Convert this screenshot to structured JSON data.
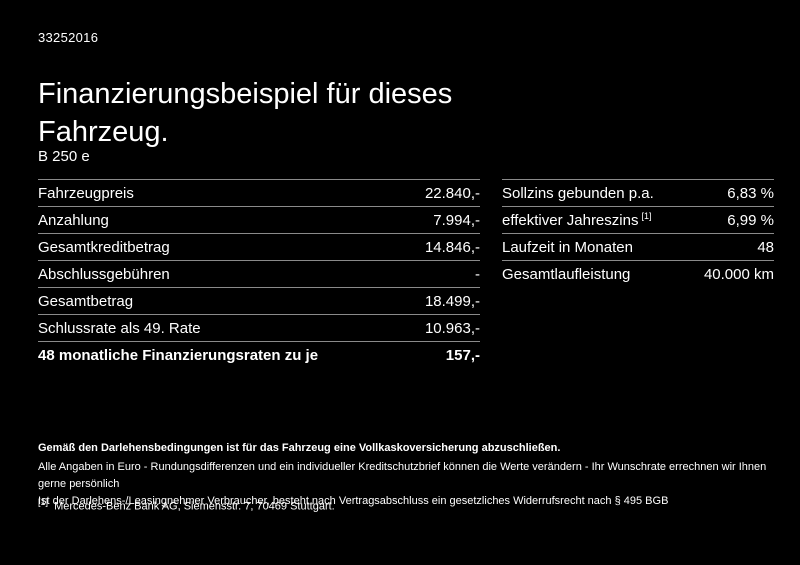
{
  "page": {
    "vehicle_id": "33252016",
    "title_line1": "Finanzierungsbeispiel für dieses",
    "title_line2": "Fahrzeug.",
    "model": "B 250 e"
  },
  "left_table": {
    "rows": [
      {
        "label": "Fahrzeugpreis",
        "value": "22.840,-"
      },
      {
        "label": "Anzahlung",
        "value": "7.994,-"
      },
      {
        "label": "Gesamtkreditbetrag",
        "value": "14.846,-"
      },
      {
        "label": "Abschlussgebühren",
        "value": "-"
      },
      {
        "label": "Gesamtbetrag",
        "value": "18.499,-"
      },
      {
        "label": "Schlussrate als 49. Rate",
        "value": "10.963,-"
      },
      {
        "label": "48 monatliche Finanzierungsraten zu je",
        "value": "157,-"
      }
    ]
  },
  "right_table": {
    "rows": [
      {
        "label": "Sollzins gebunden p.a.",
        "value": "6,83 %"
      },
      {
        "label": "effektiver Jahreszins",
        "sup": "[1]",
        "value": "6,99 %"
      },
      {
        "label": "Laufzeit in Monaten",
        "value": "48"
      },
      {
        "label": "Gesamtlaufleistung",
        "value": "40.000 km"
      }
    ]
  },
  "footer": {
    "bold_line": "Gemäß den Darlehensbedingungen ist für das Fahrzeug eine Vollkaskoversicherung abzuschließen.",
    "line2": "Alle Angaben in Euro - Rundungsdifferenzen und ein individueller Kreditschutzbrief können die Werte verändern - Ihr Wunschrate errechnen wir Ihnen gerne persönlich",
    "line3": "Ist der Darlehens-/Leasingnehmer Verbraucher, besteht nach Vertragsabschluss ein gesetzliches Widerrufsrecht nach § 495 BGB",
    "footnote_marker": "[1]",
    "footnote_text": "Mercedes-Benz Bank AG, Siemensstr. 7, 70469 Stuttgart."
  },
  "colors": {
    "background": "#000000",
    "text": "#ffffff",
    "divider": "#8a8a8a"
  }
}
